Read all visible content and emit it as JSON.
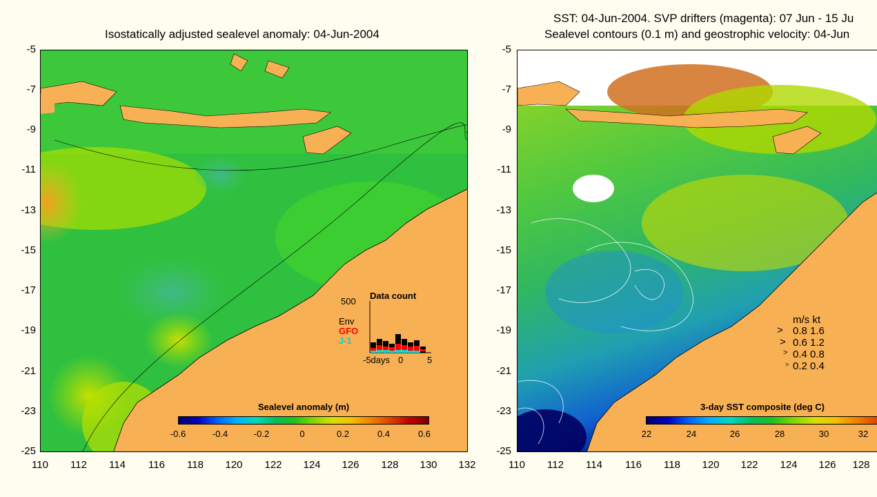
{
  "left": {
    "title": "Isostatically adjusted sealevel anomaly: 04-Jun-2004",
    "yticks": [
      "-5",
      "-7",
      "-9",
      "-11",
      "-13",
      "-15",
      "-17",
      "-19",
      "-21",
      "-23",
      "-25"
    ],
    "xticks": [
      "110",
      "112",
      "114",
      "116",
      "118",
      "120",
      "122",
      "124",
      "126",
      "128",
      "130",
      "132"
    ],
    "colorbar": {
      "label": "Sealevel anomaly (m)",
      "ticks": [
        "-0.6",
        "-0.4",
        "-0.2",
        "0",
        "0.2",
        "0.4",
        "0.6"
      ]
    },
    "inset": {
      "max_label": "500",
      "title": "Data count",
      "env": "Env",
      "gfo": "GFO",
      "j1": "J-1",
      "xlabel_left": "-5days",
      "xlabel_mid": "0",
      "xlabel_right": "5",
      "colors": {
        "env": "#000000",
        "gfo": "#ff0000",
        "j1": "#00e0e0"
      }
    }
  },
  "right": {
    "title_line1": "SST: 04-Jun-2004. SVP drifters (magenta): 07 Jun - 15 Ju",
    "title_line2": "Sealevel contours (0.1 m) and geostrophic velocity: 04-Jun",
    "yticks": [
      "-5",
      "-7",
      "-9",
      "-11",
      "-13",
      "-15",
      "-17",
      "-19",
      "-21",
      "-23",
      "-25"
    ],
    "xticks": [
      "110",
      "112",
      "114",
      "116",
      "118",
      "120",
      "122",
      "124",
      "126",
      "128"
    ],
    "colorbar": {
      "label": "3-day SST composite (deg C)",
      "ticks": [
        "22",
        "24",
        "26",
        "28",
        "30",
        "32"
      ]
    },
    "velocity_legend": {
      "header": "m/s  kt",
      "rows": [
        "0.8  1.6",
        "0.6  1.2",
        "0.4  0.8",
        "0.2  0.4"
      ]
    }
  },
  "colors": {
    "land": "#f8b055",
    "background": "#fffdf0"
  }
}
